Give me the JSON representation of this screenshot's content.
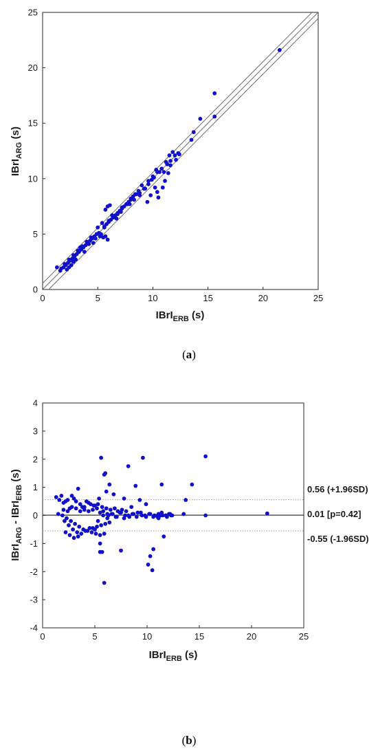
{
  "chart_data": [
    {
      "type": "scatter",
      "panel_caption": "a",
      "xlabel": {
        "main": "IBrI",
        "sub": "ERB",
        "unit": " (s)"
      },
      "ylabel": {
        "main": "IBrI",
        "sub": "ARG",
        "unit": " (s)"
      },
      "xlim": [
        0,
        25
      ],
      "ylim": [
        0,
        25
      ],
      "xticks": [
        "0",
        "5",
        "10",
        "20",
        "15",
        "25"
      ],
      "xtick_values": [
        0,
        5,
        10,
        20,
        15,
        25
      ],
      "yticks": [
        "0",
        "5",
        "10",
        "15",
        "20",
        "25"
      ],
      "ytick_values": [
        0,
        5,
        10,
        15,
        20,
        25
      ],
      "marker_color": "#1010cc",
      "line_color": "#6e6e6e",
      "reference_lines": [
        {
          "slope": 1,
          "intercept": -0.55
        },
        {
          "slope": 1,
          "intercept": 0.01
        },
        {
          "slope": 1,
          "intercept": 0.56
        }
      ],
      "series": [
        {
          "x": [
            21.5,
            15.6,
            15.6,
            14.3,
            13.5,
            13.7,
            12.3,
            12.1,
            11.8,
            11.5,
            11.6,
            11.3,
            11.1,
            11.0,
            10.6,
            10.3,
            10.1,
            10.4,
            9.9,
            10.2,
            9.6,
            9.3,
            9.0,
            8.8,
            8.5,
            8.2,
            8.0,
            7.8,
            7.6,
            7.4,
            7.2,
            7.0,
            6.8,
            6.6,
            6.4,
            6.2,
            6.0,
            5.8,
            5.6,
            5.9,
            5.7,
            5.5,
            5.3,
            5.1,
            4.9,
            4.7,
            4.5,
            4.3,
            4.1,
            3.9,
            3.7,
            3.5,
            3.3,
            3.1,
            2.9,
            2.7,
            2.5,
            2.3,
            2.1,
            1.9,
            1.7,
            1.3,
            1.6,
            2.0,
            2.4,
            2.8,
            3.2,
            3.6,
            4.0,
            4.4,
            4.8,
            5.2,
            5.6,
            6.0,
            6.4,
            6.8,
            7.2,
            7.6,
            8.0,
            8.4,
            8.8,
            9.2,
            9.6,
            10.0,
            10.4,
            10.8,
            11.2,
            11.6,
            12.0,
            9.5,
            9.8,
            10.5,
            10.9,
            7.7,
            6.1,
            5.7,
            5.9,
            4.2,
            3.8,
            2.6,
            2.2,
            3.4,
            3.0,
            2.8,
            2.4,
            4.6,
            5.0,
            5.4,
            6.3,
            6.7,
            7.1,
            7.9,
            8.3,
            8.7,
            11.4,
            12.4
          ],
          "y": [
            21.6,
            17.7,
            15.6,
            15.4,
            13.5,
            14.2,
            12.3,
            11.7,
            12.4,
            12.1,
            11.2,
            11.3,
            9.8,
            10.6,
            10.6,
            10.8,
            10.1,
            8.8,
            9.9,
            9.2,
            9.8,
            9.1,
            9.4,
            8.7,
            8.6,
            8.4,
            8.1,
            7.9,
            7.7,
            7.5,
            7.3,
            7.1,
            6.8,
            6.7,
            6.5,
            6.3,
            6.1,
            5.9,
            5.7,
            7.5,
            7.2,
            4.7,
            5.0,
            5.1,
            5.0,
            4.8,
            4.6,
            4.4,
            4.2,
            4.0,
            3.8,
            3.6,
            3.4,
            3.2,
            3.0,
            2.8,
            2.6,
            2.4,
            2.2,
            2.0,
            1.9,
            2.0,
            1.7,
            2.3,
            2.7,
            3.1,
            3.5,
            3.9,
            4.3,
            4.7,
            4.6,
            4.8,
            5.6,
            6.2,
            6.5,
            6.9,
            7.4,
            7.7,
            8.2,
            8.6,
            8.5,
            9.1,
            9.5,
            10.2,
            10.6,
            10.9,
            11.5,
            11.6,
            12.1,
            7.9,
            8.5,
            8.3,
            9.2,
            7.7,
            7.6,
            4.8,
            4.5,
            4.1,
            3.4,
            2.2,
            1.8,
            3.8,
            2.7,
            2.5,
            2.0,
            4.2,
            5.6,
            6.0,
            6.7,
            6.4,
            7.0,
            7.7,
            8.1,
            8.9,
            10.5,
            12.2
          ]
        }
      ]
    },
    {
      "type": "scatter",
      "panel_caption": "b",
      "xlabel": {
        "main": "IBrI",
        "sub": "ERB",
        "unit": " (s)"
      },
      "ylabel": {
        "main": "IBrI",
        "sub": "ARG",
        "mid": " - IBrI",
        "sub2": "ERB",
        "unit": " (s)"
      },
      "xlim": [
        0,
        25
      ],
      "ylim": [
        -4,
        4
      ],
      "xticks": [
        "0",
        "5",
        "10",
        "15",
        "20",
        "25"
      ],
      "xtick_values": [
        0,
        5,
        10,
        15,
        20,
        25
      ],
      "yticks": [
        "4",
        "3",
        "2",
        "1",
        "0",
        "-1",
        "-2",
        "-3",
        "-4"
      ],
      "ytick_values": [
        4,
        3,
        2,
        1,
        0,
        -1,
        -2,
        -3,
        -4
      ],
      "marker_color": "#1010cc",
      "mean_line_color": "#333333",
      "limit_line_color": "#9a9a9a",
      "reference_lines": [
        {
          "y": 0.56,
          "label": "0.56 (+1.96SD)",
          "style": "dotted"
        },
        {
          "y": 0.01,
          "label": "0.01 [p=0.42]",
          "style": "solid"
        },
        {
          "y": -0.55,
          "label": "-0.55 (-1.96SD)",
          "style": "dotted"
        }
      ],
      "series": [
        {
          "x": [
            21.5,
            15.6,
            15.6,
            14.3,
            13.7,
            13.5,
            12.3,
            12.1,
            11.8,
            11.6,
            11.4,
            11.3,
            11.1,
            11.0,
            10.6,
            10.5,
            10.3,
            10.1,
            9.9,
            9.6,
            9.3,
            8.9,
            8.5,
            8.2,
            7.8,
            7.5,
            7.2,
            6.8,
            6.4,
            6.1,
            6.0,
            5.9,
            5.9,
            5.7,
            5.6,
            5.5,
            5.5,
            5.4,
            5.3,
            5.2,
            5.0,
            4.9,
            4.8,
            4.6,
            4.4,
            4.2,
            4.0,
            3.8,
            3.6,
            3.4,
            3.2,
            3.0,
            2.8,
            2.6,
            2.4,
            2.2,
            2.0,
            1.8,
            1.6,
            1.3,
            1.5,
            1.9,
            2.3,
            2.7,
            3.1,
            3.5,
            3.9,
            4.3,
            4.7,
            5.1,
            5.5,
            5.9,
            6.3,
            6.7,
            7.1,
            7.5,
            7.9,
            8.3,
            8.7,
            9.1,
            9.5,
            9.9,
            10.3,
            10.7,
            11.1,
            11.5,
            11.9,
            12.4,
            2.1,
            2.5,
            2.9,
            3.3,
            3.7,
            4.1,
            4.5,
            2.0,
            2.4,
            2.8,
            3.2,
            3.6,
            4.0,
            4.4,
            5.8,
            6.2,
            6.6,
            7.0,
            7.4,
            7.8,
            8.2,
            8.6,
            9.0,
            9.4,
            9.8,
            10.2,
            10.6,
            11.0,
            11.4,
            11.8,
            12.2,
            3.0,
            3.4,
            2.6,
            2.2,
            4.8,
            5.2,
            5.6,
            6.0,
            6.4,
            5.0,
            5.7,
            6.1,
            6.5,
            5.3,
            5.8,
            7.6,
            8.0,
            5.5,
            6.2,
            6.9
          ],
          "y": [
            0.07,
            2.1,
            0.0,
            1.1,
            0.55,
            0.05,
            0.0,
            0.05,
            0.0,
            -0.75,
            1.1,
            0.0,
            0.05,
            -0.05,
            -1.2,
            -1.95,
            -1.45,
            -1.75,
            0.4,
            2.05,
            0.55,
            1.05,
            0.3,
            1.75,
            0.6,
            -1.25,
            0.15,
            0.75,
            1.1,
            0.85,
            1.5,
            1.45,
            -2.4,
            -1.3,
            2.05,
            -1.0,
            -1.3,
            0.6,
            0.4,
            0.25,
            -0.5,
            0.35,
            0.2,
            0.4,
            0.45,
            0.5,
            0.3,
            0.3,
            0.4,
            0.95,
            0.5,
            0.6,
            0.7,
            0.25,
            0.55,
            0.5,
            0.45,
            0.7,
            0.55,
            0.65,
            0.05,
            0.0,
            -0.1,
            -0.2,
            -0.3,
            -0.4,
            -0.5,
            -0.55,
            -0.6,
            -0.65,
            -0.7,
            -0.65,
            0.0,
            0.05,
            -0.05,
            0.1,
            0.0,
            -0.05,
            0.05,
            0.1,
            0.0,
            -0.05,
            0.05,
            0.0,
            -0.1,
            0.0,
            -0.05,
            0.0,
            -0.2,
            -0.35,
            -0.5,
            -0.6,
            -0.65,
            -0.55,
            -0.45,
            0.2,
            0.15,
            0.3,
            0.25,
            0.15,
            0.2,
            0.15,
            0.0,
            -0.1,
            0.05,
            -0.05,
            0.1,
            -0.1,
            0.0,
            0.05,
            -0.05,
            0.1,
            0.0,
            0.05,
            -0.05,
            0.0,
            0.1,
            0.0,
            0.05,
            -0.8,
            -0.75,
            -0.7,
            -0.6,
            -0.45,
            -0.4,
            -0.35,
            -0.3,
            -0.25,
            0.35,
            0.3,
            0.25,
            0.2,
            -0.2,
            0.15,
            0.2,
            0.15,
            0.1,
            0.05,
            0.25
          ]
        }
      ]
    }
  ]
}
